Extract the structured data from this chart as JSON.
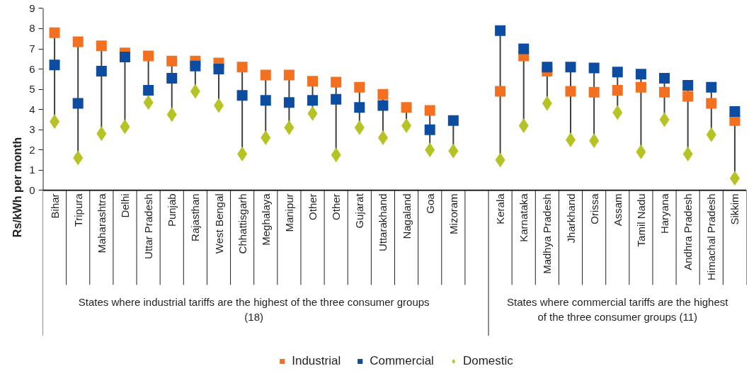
{
  "chart_data": {
    "type": "scatter",
    "ylabel": "Rs/kWh per month",
    "categories": [
      "Bihar",
      "Tripura",
      "Maharashtra",
      "Delhi",
      "Uttar Pradesh",
      "Punjab",
      "Rajasthan",
      "West Bengal",
      "Chhattisgarh",
      "Meghalaya",
      "Manipur",
      "Other",
      "Other",
      "Gujarat",
      "Uttarakhand",
      "Nagaland",
      "Goa",
      "Mizoram",
      null,
      "Kerala",
      "Karnataka",
      "Madhya Pradesh",
      "Jharkhand",
      "Orissa",
      "Assam",
      "Tamil Nadu",
      "Haryana",
      "Andhra Pradesh",
      "Himachal Pradesh",
      "Sikkim"
    ],
    "series": [
      {
        "name": "Industrial",
        "color": "#f37021",
        "marker": "square",
        "values": [
          7.8,
          7.35,
          7.15,
          6.8,
          6.65,
          6.4,
          6.4,
          6.3,
          6.1,
          5.7,
          5.7,
          5.4,
          5.35,
          5.1,
          4.75,
          4.1,
          3.95,
          null,
          null,
          4.9,
          6.65,
          5.9,
          4.9,
          4.85,
          4.95,
          5.1,
          4.85,
          4.65,
          4.3,
          3.45
        ]
      },
      {
        "name": "Commercial",
        "color": "#0c4da2",
        "marker": "square",
        "values": [
          6.2,
          4.3,
          5.9,
          6.6,
          4.95,
          5.55,
          6.15,
          6.0,
          4.7,
          4.45,
          4.35,
          4.45,
          4.5,
          4.1,
          4.2,
          null,
          3.0,
          3.45,
          null,
          7.9,
          7.0,
          6.1,
          6.1,
          6.05,
          5.85,
          5.75,
          5.55,
          5.2,
          5.1,
          3.9
        ]
      },
      {
        "name": "Domestic",
        "color": "#b5c424",
        "marker": "diamond",
        "values": [
          3.4,
          1.6,
          2.8,
          3.15,
          4.35,
          3.75,
          4.9,
          4.2,
          1.8,
          2.6,
          3.1,
          3.8,
          1.75,
          3.1,
          2.6,
          3.2,
          2.0,
          1.95,
          null,
          1.5,
          3.2,
          4.3,
          2.5,
          2.45,
          3.85,
          1.9,
          3.5,
          1.8,
          2.75,
          0.6
        ]
      }
    ],
    "ylim": [
      0,
      9
    ],
    "yticks": [
      0,
      1,
      2,
      3,
      4,
      5,
      6,
      7,
      8,
      9
    ],
    "grid": "x",
    "legend": "bottom",
    "annotations": [
      "States where industrial tariffs are the highest of the three consumer groups (18)",
      "States where commercial tariffs are the highest of the three consumer groups (11)"
    ]
  }
}
